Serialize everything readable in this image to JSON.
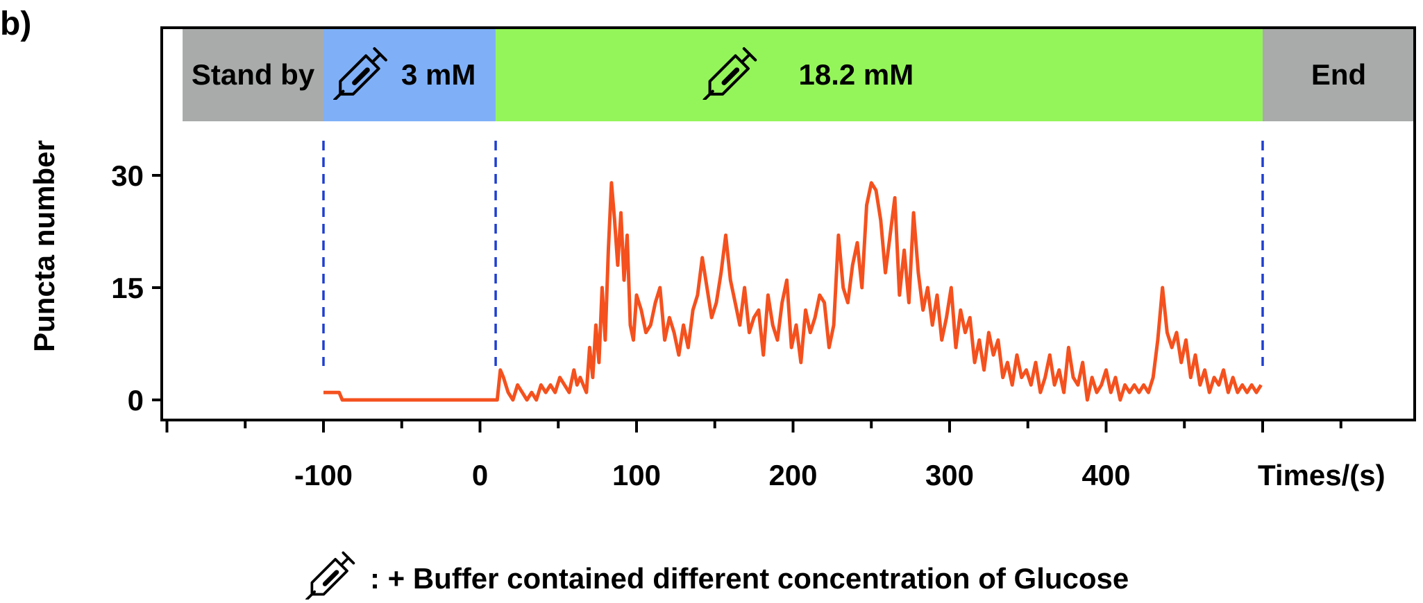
{
  "panel_label": "b)",
  "phases": [
    {
      "label": "Stand by",
      "color": "#a9abab",
      "start": -190,
      "end": -100,
      "syringe": false
    },
    {
      "label": "3 mM",
      "color": "#7fb0f7",
      "start": -100,
      "end": 10,
      "syringe": true
    },
    {
      "label": "18.2 mM",
      "color": "#94f55a",
      "start": 10,
      "end": 500,
      "syringe": true
    },
    {
      "label": "End",
      "color": "#a9abab",
      "start": 500,
      "end": 600,
      "syringe": false
    }
  ],
  "footnote": ": + Buffer contained different concentration of Glucose",
  "colors": {
    "line": "#f4511e",
    "divider": "#1f3fd1",
    "axis": "#000000"
  },
  "chart_data": {
    "type": "line",
    "title": "",
    "xlabel": "Times/(s)",
    "ylabel": "Puncta number",
    "xlim": [
      -200,
      600
    ],
    "ylim": [
      -2,
      36
    ],
    "x_ticks": [
      -100,
      0,
      100,
      200,
      300,
      400
    ],
    "y_ticks": [
      0,
      15,
      30
    ],
    "phase_boundaries": [
      -100,
      10,
      500
    ],
    "grid": false,
    "legend": "none",
    "series": [
      {
        "x": [
          -100,
          -90,
          -88,
          -80,
          -70,
          -60,
          -50,
          -40,
          -30,
          -20,
          -10,
          0,
          5,
          7,
          9,
          11,
          13,
          15,
          18,
          21,
          24,
          27,
          30,
          33,
          36,
          39,
          42,
          45,
          48,
          51,
          54,
          57,
          60,
          62,
          64,
          66,
          68,
          70,
          72,
          74,
          76,
          78,
          80,
          82,
          84,
          86,
          88,
          90,
          92,
          94,
          96,
          98,
          100,
          103,
          106,
          109,
          112,
          115,
          118,
          121,
          124,
          127,
          130,
          133,
          136,
          139,
          142,
          145,
          148,
          151,
          154,
          157,
          160,
          163,
          166,
          169,
          172,
          175,
          178,
          181,
          184,
          187,
          190,
          193,
          196,
          199,
          202,
          205,
          208,
          211,
          214,
          217,
          220,
          223,
          226,
          229,
          232,
          235,
          238,
          241,
          244,
          247,
          250,
          253,
          256,
          259,
          262,
          265,
          268,
          271,
          274,
          277,
          280,
          283,
          286,
          289,
          292,
          295,
          298,
          301,
          304,
          307,
          310,
          313,
          316,
          319,
          322,
          325,
          328,
          331,
          334,
          337,
          340,
          343,
          346,
          349,
          352,
          355,
          358,
          361,
          364,
          367,
          370,
          373,
          376,
          379,
          382,
          385,
          388,
          391,
          394,
          397,
          400,
          403,
          406,
          409,
          412,
          415,
          418,
          421,
          424,
          427,
          430,
          433,
          436,
          439,
          442,
          445,
          448,
          451,
          454,
          457,
          460,
          463,
          466,
          469,
          472,
          475,
          478,
          481,
          484,
          487,
          490,
          493,
          496,
          499
        ],
        "y": [
          1,
          1,
          0,
          0,
          0,
          0,
          0,
          0,
          0,
          0,
          0,
          0,
          0,
          0,
          0,
          0,
          4,
          3,
          1,
          0,
          2,
          1,
          0,
          1,
          0,
          2,
          1,
          2,
          1,
          3,
          2,
          1,
          4,
          2,
          3,
          2,
          1,
          7,
          3,
          10,
          5,
          15,
          8,
          20,
          29,
          24,
          18,
          25,
          16,
          22,
          10,
          8,
          14,
          12,
          9,
          10,
          13,
          15,
          8,
          11,
          9,
          6,
          10,
          7,
          12,
          14,
          19,
          15,
          11,
          13,
          17,
          22,
          16,
          13,
          10,
          15,
          9,
          11,
          12,
          6,
          14,
          10,
          8,
          13,
          16,
          7,
          10,
          5,
          12,
          9,
          11,
          14,
          13,
          7,
          10,
          22,
          15,
          13,
          18,
          21,
          15,
          26,
          29,
          28,
          24,
          17,
          22,
          27,
          14,
          20,
          13,
          25,
          17,
          12,
          15,
          10,
          14,
          8,
          11,
          15,
          7,
          12,
          9,
          11,
          5,
          8,
          4,
          9,
          6,
          8,
          3,
          5,
          2,
          6,
          3,
          4,
          2,
          5,
          1,
          3,
          6,
          2,
          4,
          1,
          7,
          3,
          2,
          5,
          0,
          3,
          1,
          2,
          4,
          1,
          3,
          0,
          2,
          1,
          2,
          1,
          2,
          1,
          3,
          8,
          15,
          9,
          7,
          9,
          5,
          8,
          3,
          6,
          2,
          4,
          1,
          3,
          2,
          4,
          1,
          3,
          1,
          2,
          1,
          2,
          1,
          2
        ]
      }
    ]
  }
}
